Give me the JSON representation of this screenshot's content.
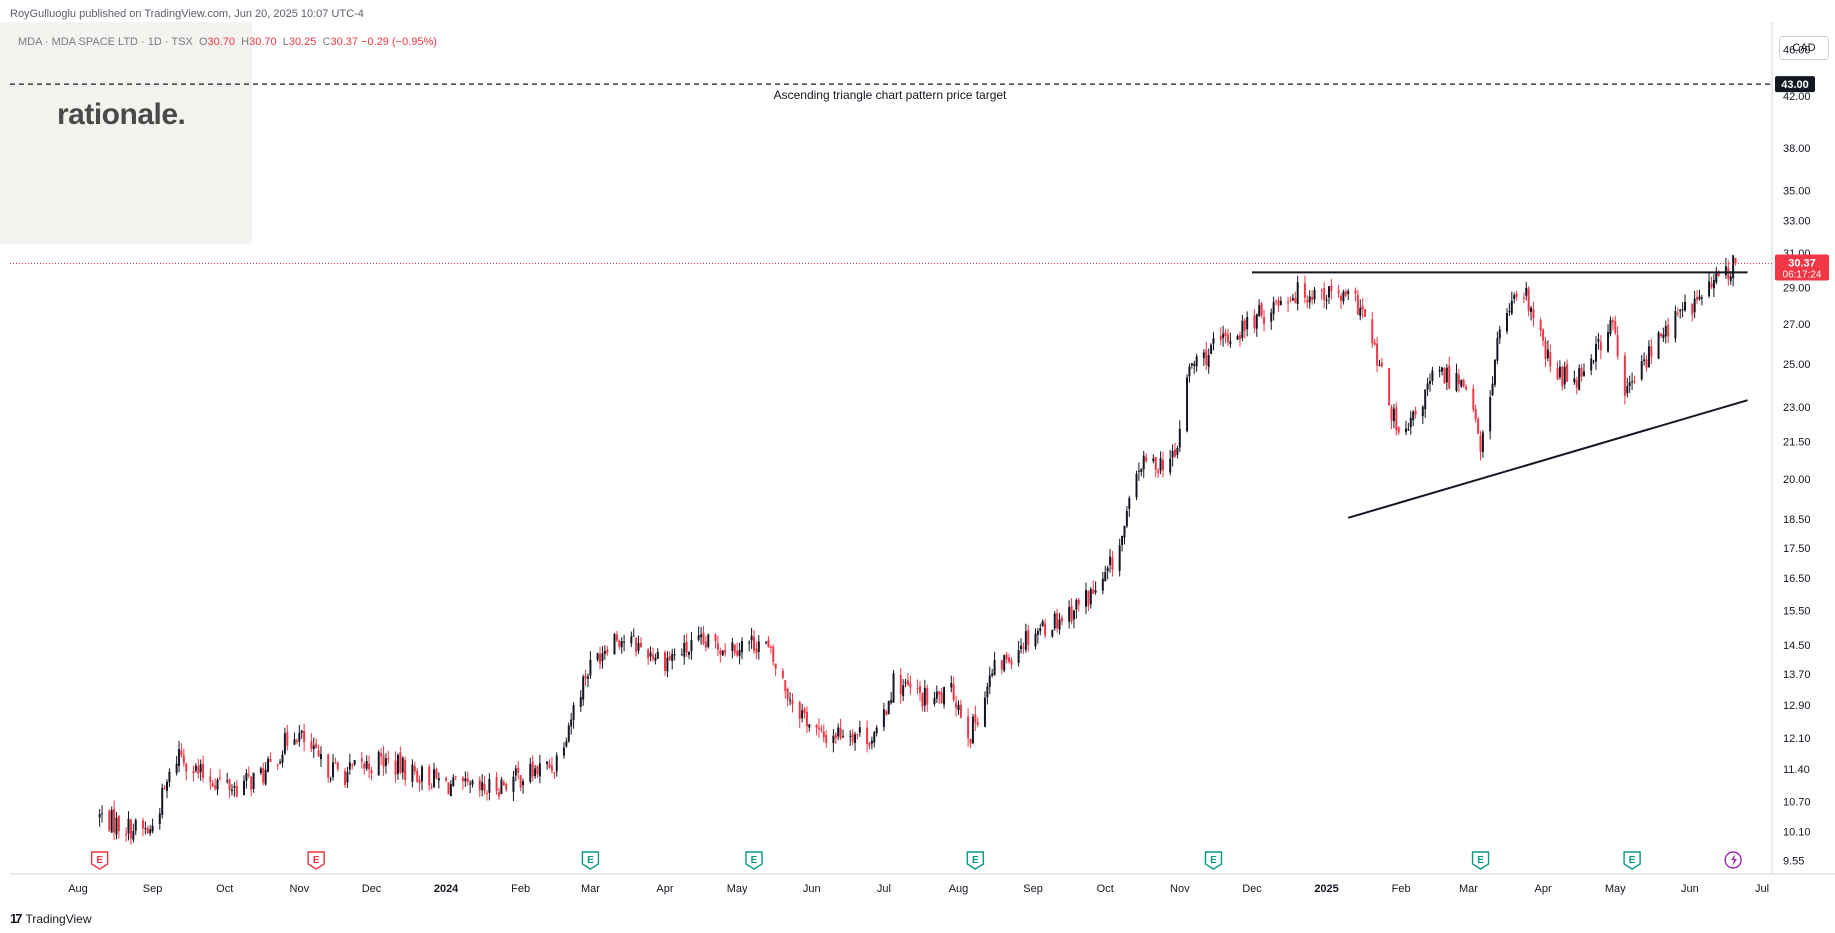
{
  "header": {
    "publisher_line": "RoyGulluoglu published on TradingView.com, Jun 20, 2025 10:07 UTC-4",
    "symbol_line": "MDA · MDA SPACE LTD · 1D · TSX",
    "ohlc": {
      "o_label": "O",
      "o": "30.70",
      "h_label": "H",
      "h": "30.70",
      "l_label": "L",
      "l": "30.25",
      "c_label": "C",
      "c": "30.37",
      "change": "−0.29 (−0.95%)"
    }
  },
  "logo": {
    "text": "rationale."
  },
  "footer": {
    "brand": "TradingView",
    "mark": "17"
  },
  "price_axis": {
    "currency": "CAD"
  },
  "colors": {
    "up": "#089981",
    "down": "#f23645",
    "candle_up_body": "#131722",
    "candle_down_body": "#f23645",
    "last_price": "#f23645",
    "grid": "#f0f3fa"
  },
  "chart_data": {
    "type": "candlestick",
    "x_range": [
      "2023-08-01",
      "2025-07-01"
    ],
    "y_scale": "log",
    "y_range": [
      9.3,
      48.5
    ],
    "price_ticks": [
      "46.00",
      "42.00",
      "38.00",
      "35.00",
      "33.00",
      "31.00",
      "29.00",
      "27.00",
      "25.00",
      "23.00",
      "21.50",
      "20.00",
      "18.50",
      "17.50",
      "16.50",
      "15.50",
      "14.50",
      "13.70",
      "12.90",
      "12.10",
      "11.40",
      "10.70",
      "10.10",
      "9.55"
    ],
    "time_ticks": [
      "Aug",
      "Sep",
      "Oct",
      "Nov",
      "Dec",
      "2024",
      "Feb",
      "Mar",
      "Apr",
      "May",
      "Jun",
      "Jul",
      "Aug",
      "Sep",
      "Oct",
      "Nov",
      "Dec",
      "2025",
      "Feb",
      "Mar",
      "Apr",
      "May",
      "Jun",
      "Jul"
    ],
    "time_tick_dates": [
      "2023-08-01",
      "2023-09-01",
      "2023-10-01",
      "2023-11-01",
      "2023-12-01",
      "2024-01-01",
      "2024-02-01",
      "2024-03-01",
      "2024-04-01",
      "2024-05-01",
      "2024-06-01",
      "2024-07-01",
      "2024-08-01",
      "2024-09-01",
      "2024-10-01",
      "2024-11-01",
      "2024-12-01",
      "2025-01-01",
      "2025-02-01",
      "2025-03-01",
      "2025-04-01",
      "2025-05-01",
      "2025-06-01",
      "2025-07-01"
    ],
    "price_anchors": [
      [
        "2023-08-10",
        10.4
      ],
      [
        "2023-08-20",
        10.2
      ],
      [
        "2023-08-31",
        10.1
      ],
      [
        "2023-09-12",
        11.8
      ],
      [
        "2023-09-20",
        11.3
      ],
      [
        "2023-10-05",
        11.0
      ],
      [
        "2023-10-18",
        11.3
      ],
      [
        "2023-10-30",
        12.3
      ],
      [
        "2023-11-10",
        11.5
      ],
      [
        "2023-11-20",
        11.3
      ],
      [
        "2023-12-05",
        11.6
      ],
      [
        "2023-12-20",
        11.3
      ],
      [
        "2024-01-05",
        11.0
      ],
      [
        "2024-01-15",
        10.9
      ],
      [
        "2024-01-30",
        11.2
      ],
      [
        "2024-02-15",
        11.5
      ],
      [
        "2024-02-28",
        13.7
      ],
      [
        "2024-03-10",
        14.8
      ],
      [
        "2024-03-20",
        14.5
      ],
      [
        "2024-04-01",
        14.1
      ],
      [
        "2024-04-15",
        14.5
      ],
      [
        "2024-04-30",
        14.5
      ],
      [
        "2024-05-12",
        14.6
      ],
      [
        "2024-05-22",
        13.2
      ],
      [
        "2024-06-05",
        12.1
      ],
      [
        "2024-06-15",
        12.3
      ],
      [
        "2024-06-28",
        12.1
      ],
      [
        "2024-07-05",
        13.5
      ],
      [
        "2024-07-20",
        13.0
      ],
      [
        "2024-07-30",
        13.2
      ],
      [
        "2024-08-06",
        12.2
      ],
      [
        "2024-08-15",
        13.7
      ],
      [
        "2024-08-30",
        14.8
      ],
      [
        "2024-09-15",
        15.4
      ],
      [
        "2024-09-30",
        16.3
      ],
      [
        "2024-10-08",
        17.8
      ],
      [
        "2024-10-15",
        20.5
      ],
      [
        "2024-10-30",
        20.8
      ],
      [
        "2024-11-05",
        24.8
      ],
      [
        "2024-11-20",
        26.2
      ],
      [
        "2024-12-05",
        27.5
      ],
      [
        "2024-12-15",
        28.6
      ],
      [
        "2024-12-30",
        28.8
      ],
      [
        "2025-01-15",
        28.0
      ],
      [
        "2025-01-25",
        24.0
      ],
      [
        "2025-02-01",
        21.3
      ],
      [
        "2025-02-15",
        24.5
      ],
      [
        "2025-03-01",
        24.2
      ],
      [
        "2025-03-06",
        21.0
      ],
      [
        "2025-03-15",
        27.5
      ],
      [
        "2025-03-25",
        28.4
      ],
      [
        "2025-04-05",
        24.5
      ],
      [
        "2025-04-15",
        24.4
      ],
      [
        "2025-04-30",
        27.0
      ],
      [
        "2025-05-05",
        23.5
      ],
      [
        "2025-05-15",
        25.5
      ],
      [
        "2025-05-25",
        27.2
      ],
      [
        "2025-06-05",
        28.4
      ],
      [
        "2025-06-15",
        29.8
      ],
      [
        "2025-06-20",
        30.37
      ]
    ],
    "earnings_markers": [
      {
        "date": "2023-08-10",
        "label": "E",
        "color": "#f23645"
      },
      {
        "date": "2023-11-08",
        "label": "E",
        "color": "#f23645"
      },
      {
        "date": "2024-03-01",
        "label": "E",
        "color": "#089981"
      },
      {
        "date": "2024-05-08",
        "label": "E",
        "color": "#089981"
      },
      {
        "date": "2024-08-08",
        "label": "E",
        "color": "#089981"
      },
      {
        "date": "2024-11-15",
        "label": "E",
        "color": "#089981"
      },
      {
        "date": "2025-03-06",
        "label": "E",
        "color": "#089981"
      },
      {
        "date": "2025-05-08",
        "label": "E",
        "color": "#089981"
      }
    ],
    "dividend_marker": {
      "date": "2025-06-19",
      "color": "#9c27b0"
    },
    "target_line": {
      "price": 43.0,
      "label": "43.00",
      "text": "Ascending triangle chart pattern price target"
    },
    "resistance_line": {
      "start": [
        "2024-12-01",
        29.85
      ],
      "end": [
        "2025-06-25",
        29.85
      ]
    },
    "support_line": {
      "start": [
        "2025-01-10",
        18.55
      ],
      "end": [
        "2025-06-25",
        23.3
      ]
    },
    "last_price": {
      "value": "30.37",
      "countdown": "06:17:24"
    }
  }
}
